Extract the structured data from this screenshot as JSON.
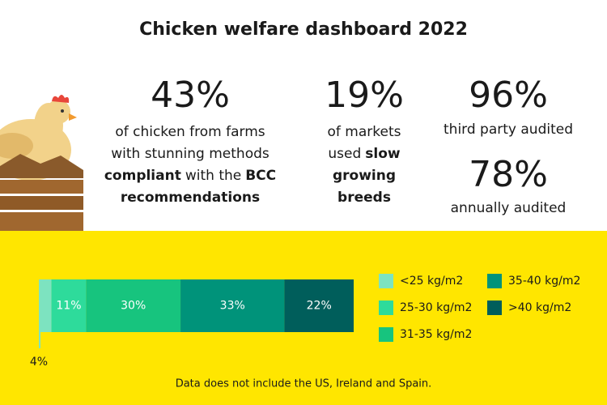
{
  "title": "Chicken welfare dashboard 2022",
  "stats": [
    {
      "value": "43%",
      "lines": [
        [
          {
            "text": "of chicken from farms"
          }
        ],
        [
          {
            "text": "with stunning methods"
          }
        ],
        [
          {
            "text": "compliant",
            "bold": true
          },
          {
            "text": "with the"
          },
          {
            "text": "BCC",
            "bold": true
          }
        ],
        [
          {
            "text": "recommendations",
            "bold": true
          }
        ]
      ]
    },
    {
      "value": "19%",
      "lines": [
        [
          {
            "text": "of markets"
          }
        ],
        [
          {
            "text": "used"
          },
          {
            "text": "slow",
            "bold": true
          }
        ],
        [
          {
            "text": "growing",
            "bold": true
          }
        ],
        [
          {
            "text": "breeds",
            "bold": true
          }
        ]
      ]
    },
    {
      "value": "96%",
      "lines": [
        [
          {
            "text": "third party audited"
          }
        ]
      ]
    },
    {
      "value": "78%",
      "lines": [
        [
          {
            "text": "annually audited"
          }
        ]
      ]
    }
  ],
  "chart_data": {
    "type": "stacked_bar",
    "xlim": [
      0,
      100
    ],
    "series": [
      {
        "name": "<25 kg/m2",
        "color": "#7de3c0",
        "values": [
          4
        ],
        "value_labels": [
          "4%"
        ]
      },
      {
        "name": "25-30 kg/m2",
        "color": "#2edb9b",
        "values": [
          11
        ],
        "value_labels": [
          "11%"
        ]
      },
      {
        "name": "31-35 kg/m2",
        "color": "#17c47e",
        "values": [
          30
        ],
        "value_labels": [
          "30%"
        ]
      },
      {
        "name": "35-40 kg/m2",
        "color": "#00937a",
        "values": [
          33
        ],
        "value_labels": [
          "33%"
        ]
      },
      {
        "name": ">40 kg/m2",
        "color": "#005e5b",
        "values": [
          22
        ],
        "value_labels": [
          "22%"
        ]
      }
    ],
    "note": "Data does not include the US, Ireland and Spain."
  }
}
